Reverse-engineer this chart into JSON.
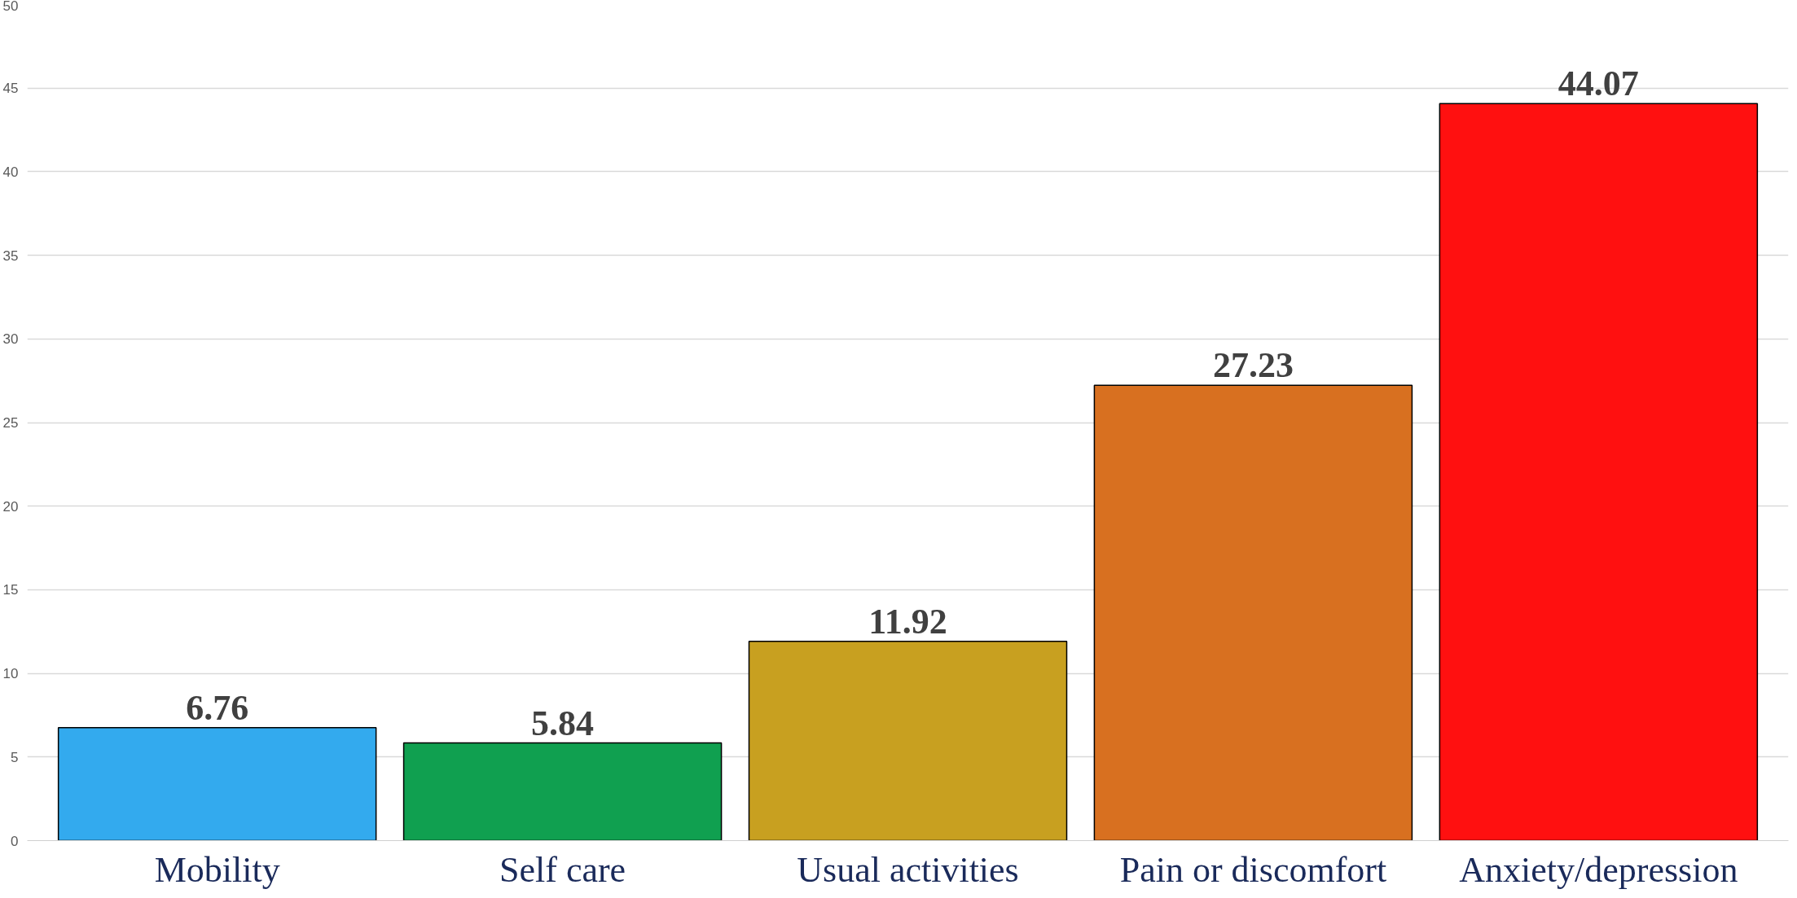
{
  "chart_data": {
    "type": "bar",
    "categories": [
      "Mobility",
      "Self care",
      "Usual activities",
      "Pain or discomfort",
      "Anxiety/depression"
    ],
    "values": [
      6.76,
      5.84,
      11.92,
      27.23,
      44.07
    ],
    "colors": [
      "#33aaee",
      "#10a050",
      "#c8a020",
      "#d87020",
      "#ff1010"
    ],
    "ylim": [
      0,
      50
    ],
    "yticks": [
      0,
      5,
      10,
      15,
      20,
      25,
      30,
      35,
      40,
      45,
      50
    ],
    "grid": "y",
    "data_labels": true
  }
}
